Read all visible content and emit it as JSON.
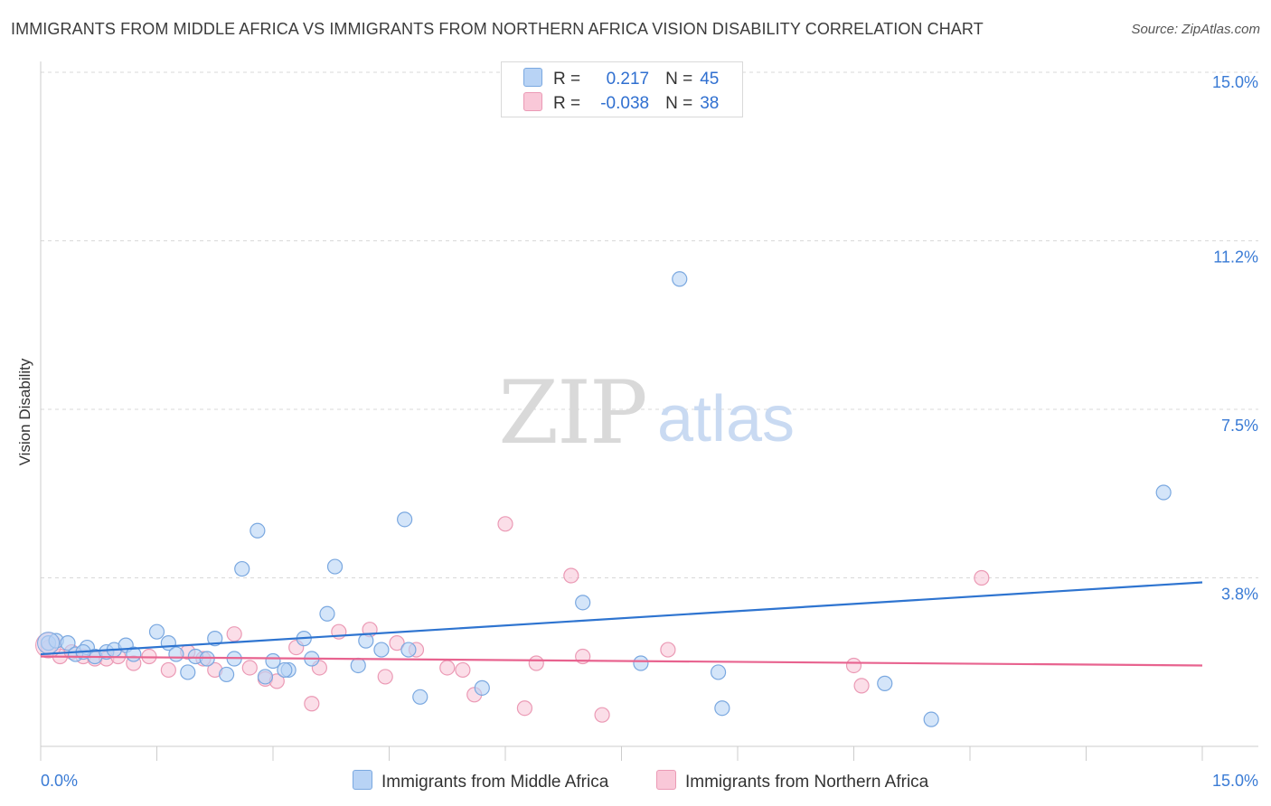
{
  "title": "IMMIGRANTS FROM MIDDLE AFRICA VS IMMIGRANTS FROM NORTHERN AFRICA VISION DISABILITY CORRELATION CHART",
  "source": "Source: ZipAtlas.com",
  "watermark": {
    "zip": "ZIP",
    "atlas": "atlas"
  },
  "legend": {
    "rows": [
      {
        "r_label": "R =",
        "r_value": "0.217",
        "n_label": "N =",
        "n_value": "45"
      },
      {
        "r_label": "R =",
        "r_value": "-0.038",
        "n_label": "N =",
        "n_value": "38"
      }
    ]
  },
  "bottom_legend": {
    "series_a": "Immigrants from Middle Africa",
    "series_b": "Immigrants from Northern Africa"
  },
  "colors": {
    "blue_fill": "#b8d3f5",
    "blue_stroke": "#7aa8e0",
    "blue_line": "#2e74d0",
    "pink_fill": "#f9c8d8",
    "pink_stroke": "#eb9ab5",
    "pink_line": "#e8638f",
    "tick_text": "#3a7bd5",
    "grid": "#d8d8d8"
  },
  "chart_data": {
    "type": "scatter",
    "title": "IMMIGRANTS FROM MIDDLE AFRICA VS IMMIGRANTS FROM NORTHERN AFRICA VISION DISABILITY CORRELATION CHART",
    "xlabel": "",
    "ylabel": "Vision Disability",
    "xlim": [
      0,
      15
    ],
    "ylim": [
      0,
      15
    ],
    "x_tick_labels": [
      "0.0%",
      "15.0%"
    ],
    "y_ticks": [
      {
        "value": 15.0,
        "label": "15.0%"
      },
      {
        "value": 11.25,
        "label": "11.2%"
      },
      {
        "value": 7.5,
        "label": "7.5%"
      },
      {
        "value": 3.75,
        "label": "3.8%"
      }
    ],
    "series": [
      {
        "name": "Immigrants from Middle Africa",
        "r": 0.217,
        "n": 45,
        "trend": {
          "x": [
            0,
            15
          ],
          "y": [
            2.05,
            3.65
          ]
        },
        "points": [
          [
            0.1,
            2.3
          ],
          [
            0.2,
            2.35
          ],
          [
            0.35,
            2.3
          ],
          [
            0.45,
            2.05
          ],
          [
            0.6,
            2.2
          ],
          [
            0.7,
            2.0
          ],
          [
            0.85,
            2.1
          ],
          [
            0.95,
            2.15
          ],
          [
            1.1,
            2.25
          ],
          [
            1.2,
            2.05
          ],
          [
            1.5,
            2.55
          ],
          [
            1.65,
            2.3
          ],
          [
            1.75,
            2.05
          ],
          [
            1.9,
            1.65
          ],
          [
            2.0,
            2.0
          ],
          [
            2.15,
            1.95
          ],
          [
            2.25,
            2.4
          ],
          [
            2.4,
            1.6
          ],
          [
            2.5,
            1.95
          ],
          [
            2.6,
            3.95
          ],
          [
            2.8,
            4.8
          ],
          [
            2.9,
            1.55
          ],
          [
            3.0,
            1.9
          ],
          [
            3.2,
            1.7
          ],
          [
            3.4,
            2.4
          ],
          [
            3.5,
            1.95
          ],
          [
            3.7,
            2.95
          ],
          [
            3.8,
            4.0
          ],
          [
            4.1,
            1.8
          ],
          [
            4.2,
            2.35
          ],
          [
            4.4,
            2.15
          ],
          [
            4.7,
            5.05
          ],
          [
            4.75,
            2.15
          ],
          [
            4.9,
            1.1
          ],
          [
            5.7,
            1.3
          ],
          [
            7.0,
            3.2
          ],
          [
            7.75,
            1.85
          ],
          [
            8.25,
            10.4
          ],
          [
            8.75,
            1.65
          ],
          [
            8.8,
            0.85
          ],
          [
            10.9,
            1.4
          ],
          [
            11.5,
            0.6
          ],
          [
            14.5,
            5.65
          ],
          [
            3.15,
            1.7
          ],
          [
            0.55,
            2.1
          ]
        ]
      },
      {
        "name": "Immigrants from Northern Africa",
        "r": -0.038,
        "n": 38,
        "trend": {
          "x": [
            0,
            15
          ],
          "y": [
            2.0,
            1.8
          ]
        },
        "points": [
          [
            0.1,
            2.2
          ],
          [
            0.25,
            2.0
          ],
          [
            0.4,
            2.1
          ],
          [
            0.55,
            2.0
          ],
          [
            0.7,
            1.95
          ],
          [
            0.85,
            1.95
          ],
          [
            1.0,
            2.0
          ],
          [
            1.2,
            1.85
          ],
          [
            1.4,
            2.0
          ],
          [
            1.65,
            1.7
          ],
          [
            1.9,
            2.1
          ],
          [
            2.1,
            1.95
          ],
          [
            2.25,
            1.7
          ],
          [
            2.5,
            2.5
          ],
          [
            2.7,
            1.75
          ],
          [
            2.9,
            1.5
          ],
          [
            3.05,
            1.45
          ],
          [
            3.3,
            2.2
          ],
          [
            3.5,
            0.95
          ],
          [
            3.6,
            1.75
          ],
          [
            3.85,
            2.55
          ],
          [
            4.25,
            2.6
          ],
          [
            4.45,
            1.55
          ],
          [
            4.6,
            2.3
          ],
          [
            4.85,
            2.15
          ],
          [
            5.25,
            1.75
          ],
          [
            5.45,
            1.7
          ],
          [
            5.6,
            1.15
          ],
          [
            6.0,
            4.95
          ],
          [
            6.25,
            0.85
          ],
          [
            6.4,
            1.85
          ],
          [
            6.85,
            3.8
          ],
          [
            7.0,
            2.0
          ],
          [
            7.25,
            0.7
          ],
          [
            8.1,
            2.15
          ],
          [
            10.5,
            1.8
          ],
          [
            10.6,
            1.35
          ],
          [
            12.15,
            3.75
          ]
        ]
      }
    ]
  }
}
